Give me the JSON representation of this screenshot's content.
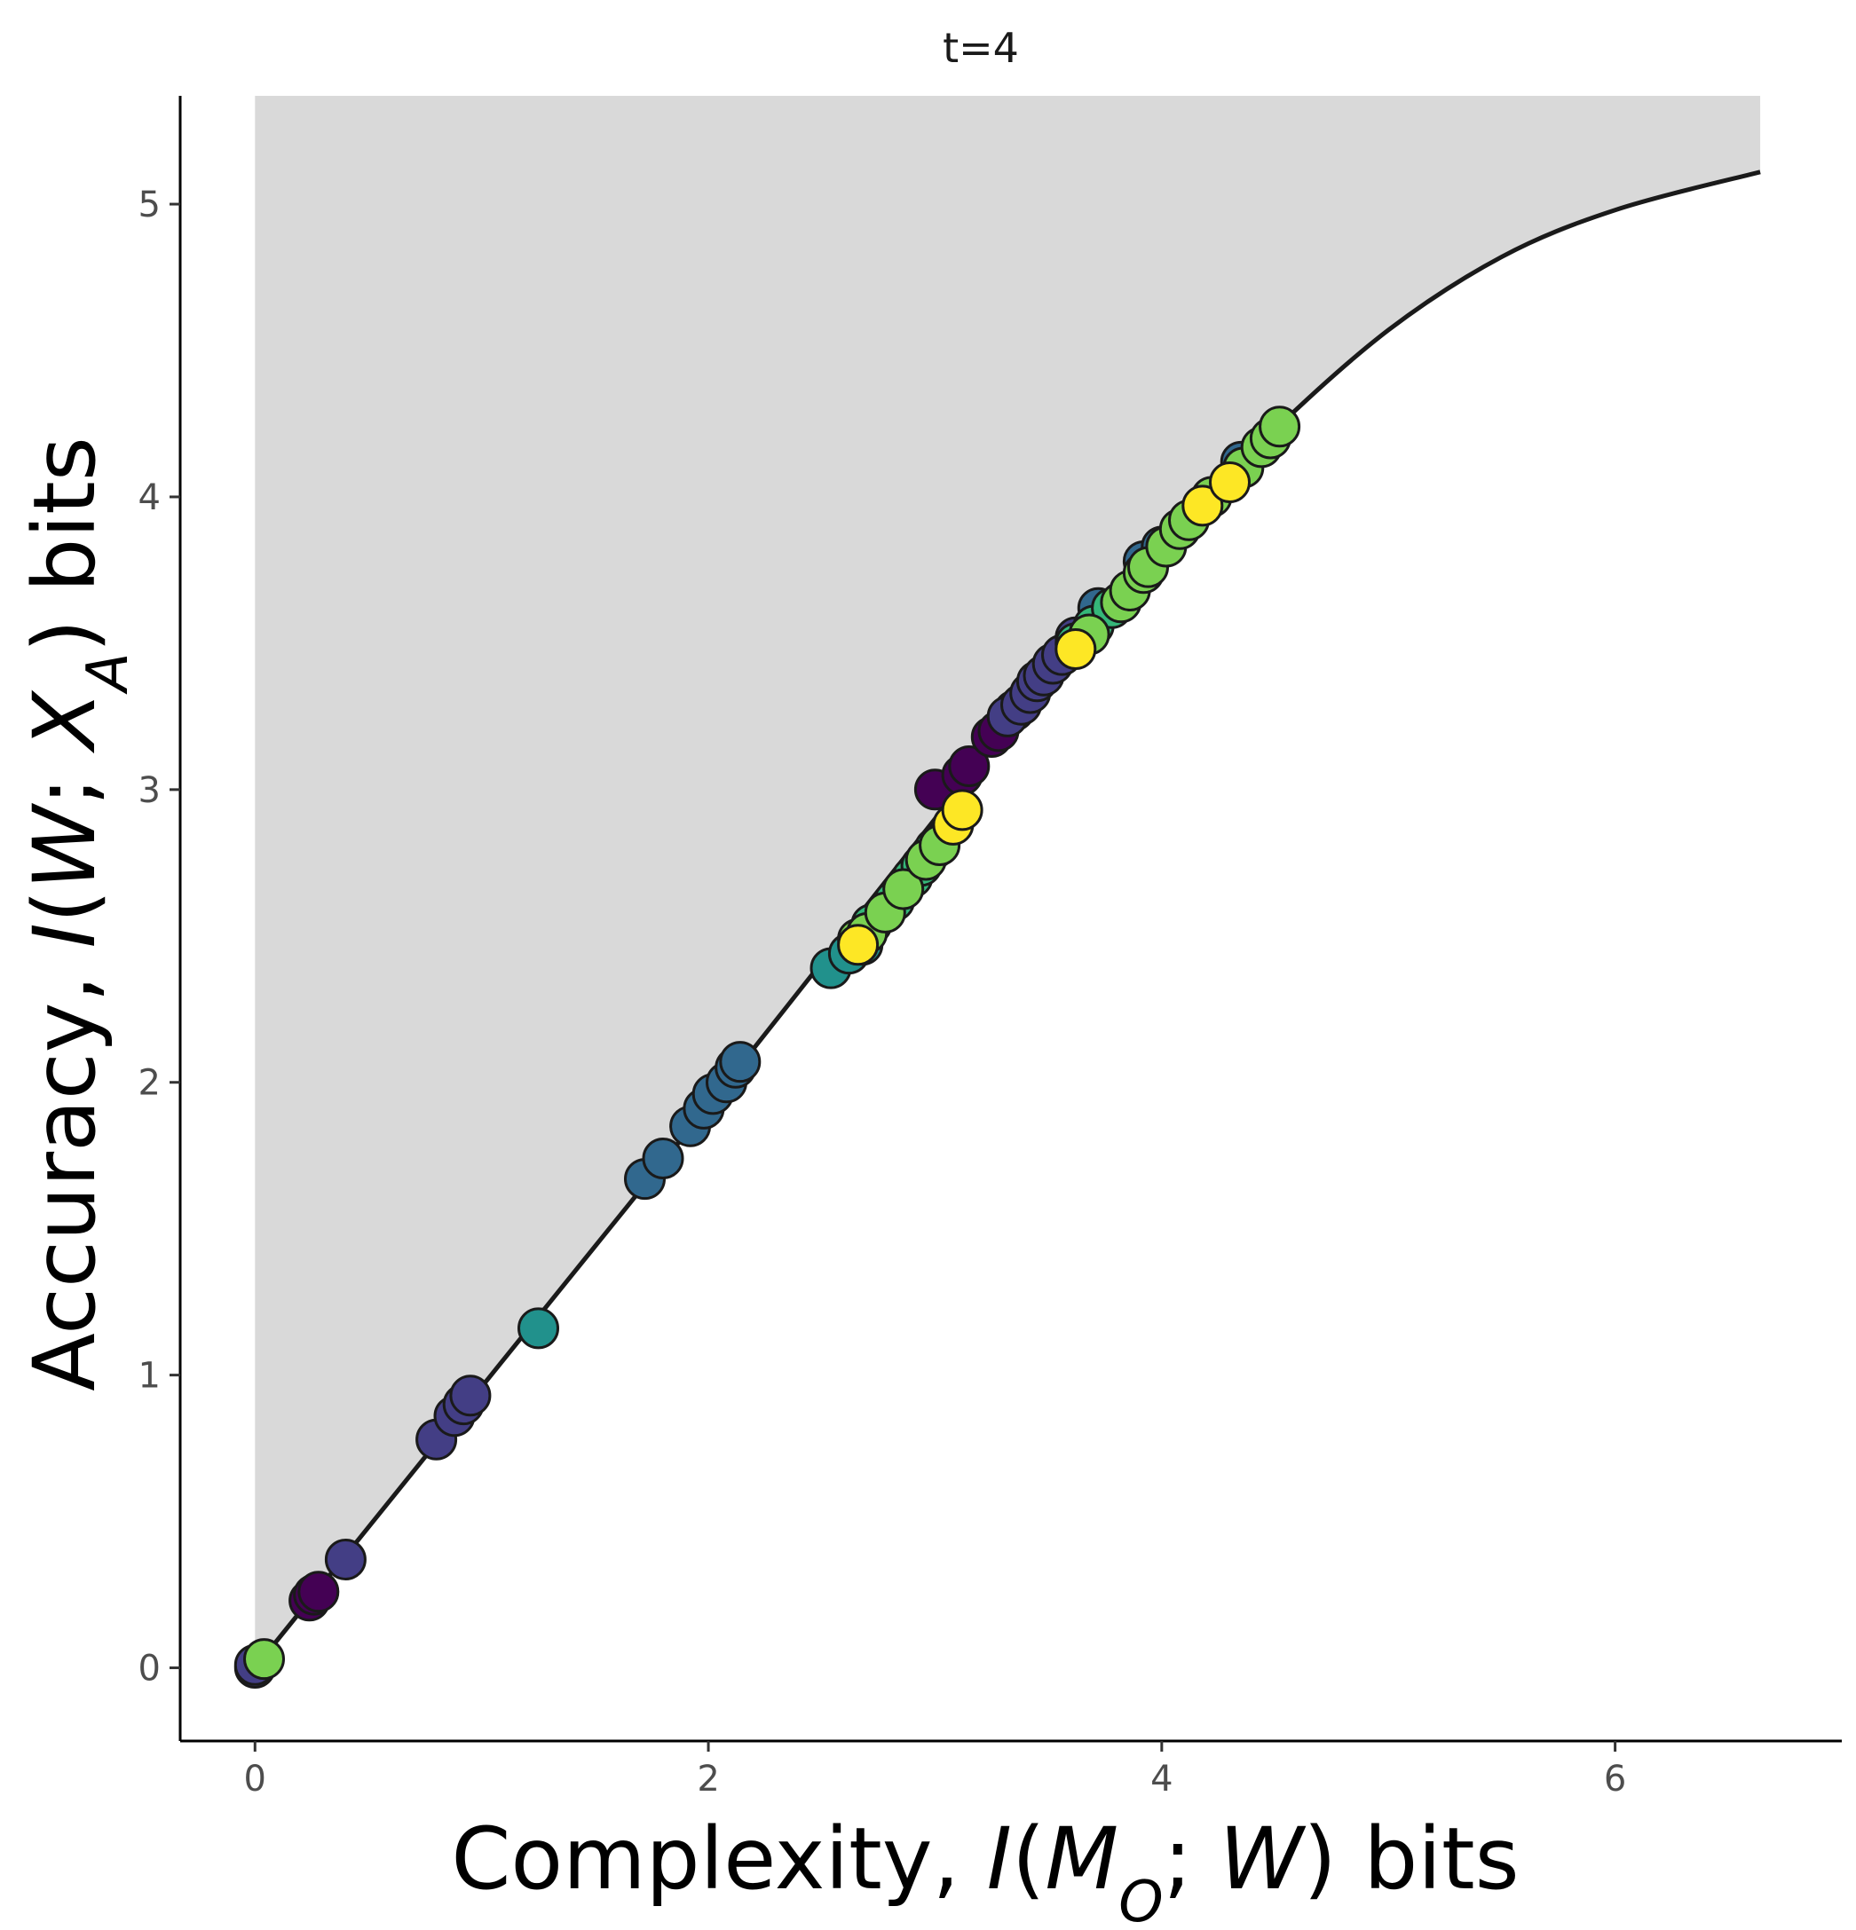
{
  "chart_data": {
    "type": "scatter",
    "title": "t=4",
    "xlabel": {
      "prefix": "Complexity, ",
      "fn": "I",
      "open": "(",
      "a": "M",
      "a_sub": "O",
      "sep": "; ",
      "b": "W",
      "close": ")",
      "suffix": " bits"
    },
    "ylabel": {
      "prefix": "Accuracy, ",
      "fn": "I",
      "open": "(",
      "a": "W",
      "sep": "; ",
      "b": "X",
      "b_sub": "A",
      "close": ")",
      "suffix": " bits"
    },
    "xlim": [
      -0.33,
      7.0
    ],
    "ylim": [
      -0.25,
      5.37
    ],
    "x_ticks": [
      0,
      2,
      4,
      6
    ],
    "y_ticks": [
      0,
      1,
      2,
      3,
      4,
      5
    ],
    "grid": false,
    "legend": "none",
    "feasible_region_fill": "#d9d9d9",
    "frontier_color": "#1a1a1a",
    "point_stroke": "#1a1a1a",
    "frontier": [
      [
        0,
        0
      ],
      [
        0.5,
        0.48
      ],
      [
        1.0,
        0.96
      ],
      [
        1.5,
        1.44
      ],
      [
        2.0,
        1.92
      ],
      [
        2.5,
        2.41
      ],
      [
        3.0,
        2.9
      ],
      [
        3.5,
        3.38
      ],
      [
        4.0,
        3.83
      ],
      [
        4.5,
        4.23
      ],
      [
        5.0,
        4.57
      ],
      [
        5.5,
        4.82
      ],
      [
        6.0,
        4.98
      ],
      [
        6.64,
        5.11
      ]
    ],
    "frontier_x_max": 6.64,
    "series": [
      {
        "color": "#440154",
        "points": [
          [
            0.24,
            0.23
          ],
          [
            0.26,
            0.25
          ],
          [
            0.28,
            0.26
          ],
          [
            3.0,
            3.0
          ],
          [
            3.12,
            3.05
          ],
          [
            3.15,
            3.08
          ],
          [
            3.25,
            3.18
          ],
          [
            3.28,
            3.2
          ],
          [
            3.35,
            3.27
          ]
        ]
      },
      {
        "color": "#433e85",
        "points": [
          [
            0.0,
            0.0
          ],
          [
            0.0,
            0.01
          ],
          [
            0.4,
            0.37
          ],
          [
            0.8,
            0.78
          ],
          [
            0.88,
            0.86
          ],
          [
            0.92,
            0.9
          ],
          [
            0.95,
            0.93
          ],
          [
            3.32,
            3.25
          ],
          [
            3.38,
            3.29
          ],
          [
            3.42,
            3.33
          ],
          [
            3.45,
            3.37
          ],
          [
            3.48,
            3.39
          ],
          [
            3.52,
            3.43
          ],
          [
            3.56,
            3.46
          ],
          [
            3.62,
            3.52
          ]
        ]
      },
      {
        "color": "#31688e",
        "points": [
          [
            1.72,
            1.67
          ],
          [
            1.8,
            1.74
          ],
          [
            1.92,
            1.85
          ],
          [
            1.98,
            1.91
          ],
          [
            2.02,
            1.96
          ],
          [
            2.08,
            2.0
          ],
          [
            2.12,
            2.05
          ],
          [
            2.14,
            2.07
          ],
          [
            3.72,
            3.62
          ],
          [
            3.92,
            3.78
          ],
          [
            4.0,
            3.83
          ],
          [
            4.35,
            4.12
          ]
        ]
      },
      {
        "color": "#21918c",
        "points": [
          [
            1.25,
            1.16
          ],
          [
            2.54,
            2.39
          ],
          [
            2.62,
            2.44
          ],
          [
            2.68,
            2.47
          ]
        ]
      },
      {
        "color": "#35b779",
        "points": [
          [
            2.72,
            2.54
          ],
          [
            2.82,
            2.62
          ],
          [
            2.9,
            2.7
          ],
          [
            2.94,
            2.74
          ],
          [
            3.0,
            2.8
          ],
          [
            3.62,
            3.5
          ],
          [
            3.7,
            3.56
          ],
          [
            3.78,
            3.62
          ]
        ]
      },
      {
        "color": "#7ad151",
        "points": [
          [
            0.04,
            0.03
          ],
          [
            2.66,
            2.49
          ],
          [
            2.7,
            2.51
          ],
          [
            2.78,
            2.58
          ],
          [
            2.86,
            2.66
          ],
          [
            2.96,
            2.76
          ],
          [
            3.02,
            2.81
          ],
          [
            3.68,
            3.53
          ],
          [
            3.82,
            3.64
          ],
          [
            3.86,
            3.68
          ],
          [
            3.92,
            3.74
          ],
          [
            3.94,
            3.76
          ],
          [
            4.02,
            3.83
          ],
          [
            4.08,
            3.89
          ],
          [
            4.12,
            3.92
          ],
          [
            4.22,
            4.0
          ],
          [
            4.36,
            4.1
          ],
          [
            4.44,
            4.17
          ],
          [
            4.48,
            4.2
          ],
          [
            4.52,
            4.24
          ]
        ]
      },
      {
        "color": "#fde725",
        "points": [
          [
            2.66,
            2.47
          ],
          [
            3.08,
            2.88
          ],
          [
            3.12,
            2.93
          ],
          [
            3.62,
            3.48
          ],
          [
            4.18,
            3.97
          ],
          [
            4.3,
            4.05
          ]
        ]
      }
    ]
  }
}
